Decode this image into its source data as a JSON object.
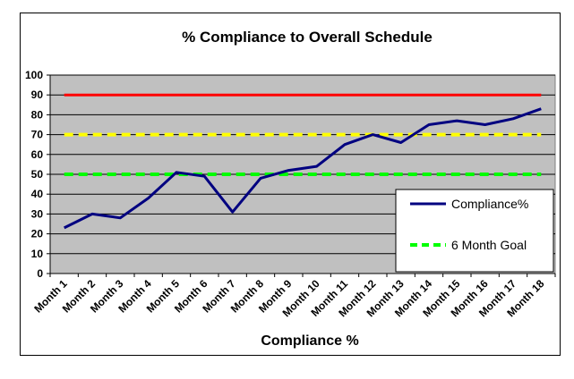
{
  "chart_data": {
    "type": "line",
    "title": "% Compliance to Overall Schedule",
    "xlabel": "Compliance %",
    "ylabel": "",
    "ylim": [
      0,
      100
    ],
    "yticks": [
      0,
      10,
      20,
      30,
      40,
      50,
      60,
      70,
      80,
      90,
      100
    ],
    "grid": true,
    "legend_position": "right",
    "plot_background": "#c0c0c0",
    "categories": [
      "Month 1",
      "Month 2",
      "Month 3",
      "Month 4",
      "Month 5",
      "Month 6",
      "Month 7",
      "Month 8",
      "Month 9",
      "Month 10",
      "Month 11",
      "Month 12",
      "Month 13",
      "Month 14",
      "Month 15",
      "Month 16",
      "Month 17",
      "Month 18"
    ],
    "series": [
      {
        "name": "Compliance%",
        "color": "#000080",
        "style": "solid",
        "values": [
          23,
          30,
          28,
          38,
          51,
          49,
          31,
          48,
          52,
          54,
          65,
          70,
          66,
          75,
          77,
          75,
          78,
          83
        ]
      },
      {
        "name": "6 Month Goal",
        "color": "#00ff00",
        "style": "dashed",
        "values": [
          50,
          50,
          50,
          50,
          50,
          50,
          50,
          50,
          50,
          50,
          50,
          50,
          50,
          50,
          50,
          50,
          50,
          50
        ]
      },
      {
        "color": "#ffff00",
        "style": "dashed",
        "values": [
          70,
          70,
          70,
          70,
          70,
          70,
          70,
          70,
          70,
          70,
          70,
          70,
          70,
          70,
          70,
          70,
          70,
          70
        ]
      },
      {
        "color": "#ff0000",
        "style": "solid",
        "values": [
          90,
          90,
          90,
          90,
          90,
          90,
          90,
          90,
          90,
          90,
          90,
          90,
          90,
          90,
          90,
          90,
          90,
          90
        ]
      }
    ],
    "legend": [
      "Compliance%",
      "6 Month Goal"
    ]
  }
}
